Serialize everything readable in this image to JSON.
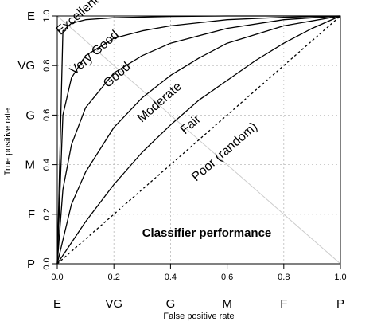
{
  "chart_data": {
    "type": "line",
    "xlabel": "False positive rate",
    "ylabel": "True positive rate",
    "xlim": [
      0,
      1
    ],
    "ylim": [
      0,
      1
    ],
    "x_ticks": [
      "0.0",
      "0.2",
      "0.4",
      "0.6",
      "0.8",
      "1.0"
    ],
    "y_ticks": [
      "0.0",
      "0.2",
      "0.4",
      "0.6",
      "0.8",
      "1.0"
    ],
    "x_grades": [
      "E",
      "VG",
      "G",
      "M",
      "F",
      "P"
    ],
    "y_grades": [
      "P",
      "F",
      "M",
      "G",
      "VG",
      "E"
    ],
    "grid": true,
    "annotation": "Classifier performance",
    "series": [
      {
        "name": "Excellent",
        "x": [
          0,
          0.02,
          0.05,
          0.1,
          0.2,
          0.4,
          0.6,
          0.8,
          1.0
        ],
        "y": [
          0,
          0.94,
          0.97,
          0.985,
          0.993,
          0.998,
          1.0,
          1.0,
          1.0
        ]
      },
      {
        "name": "Very Good",
        "x": [
          0,
          0.02,
          0.05,
          0.1,
          0.2,
          0.3,
          0.4,
          0.6,
          0.8,
          1.0
        ],
        "y": [
          0,
          0.6,
          0.75,
          0.84,
          0.91,
          0.94,
          0.96,
          0.985,
          0.995,
          1.0
        ]
      },
      {
        "name": "Good",
        "x": [
          0,
          0.02,
          0.05,
          0.1,
          0.2,
          0.3,
          0.4,
          0.6,
          0.8,
          1.0
        ],
        "y": [
          0,
          0.3,
          0.48,
          0.63,
          0.77,
          0.84,
          0.89,
          0.95,
          0.985,
          1.0
        ]
      },
      {
        "name": "Moderate",
        "x": [
          0,
          0.05,
          0.1,
          0.2,
          0.3,
          0.4,
          0.5,
          0.6,
          0.8,
          1.0
        ],
        "y": [
          0,
          0.24,
          0.37,
          0.55,
          0.67,
          0.76,
          0.83,
          0.89,
          0.96,
          1.0
        ]
      },
      {
        "name": "Fair",
        "x": [
          0,
          0.1,
          0.2,
          0.3,
          0.4,
          0.5,
          0.6,
          0.7,
          0.8,
          0.9,
          1.0
        ],
        "y": [
          0,
          0.17,
          0.32,
          0.45,
          0.56,
          0.66,
          0.74,
          0.82,
          0.89,
          0.95,
          1.0
        ]
      },
      {
        "name": "Poor (random)",
        "x": [
          0,
          1.0
        ],
        "y": [
          0,
          1.0
        ],
        "style": "dashed"
      }
    ]
  }
}
